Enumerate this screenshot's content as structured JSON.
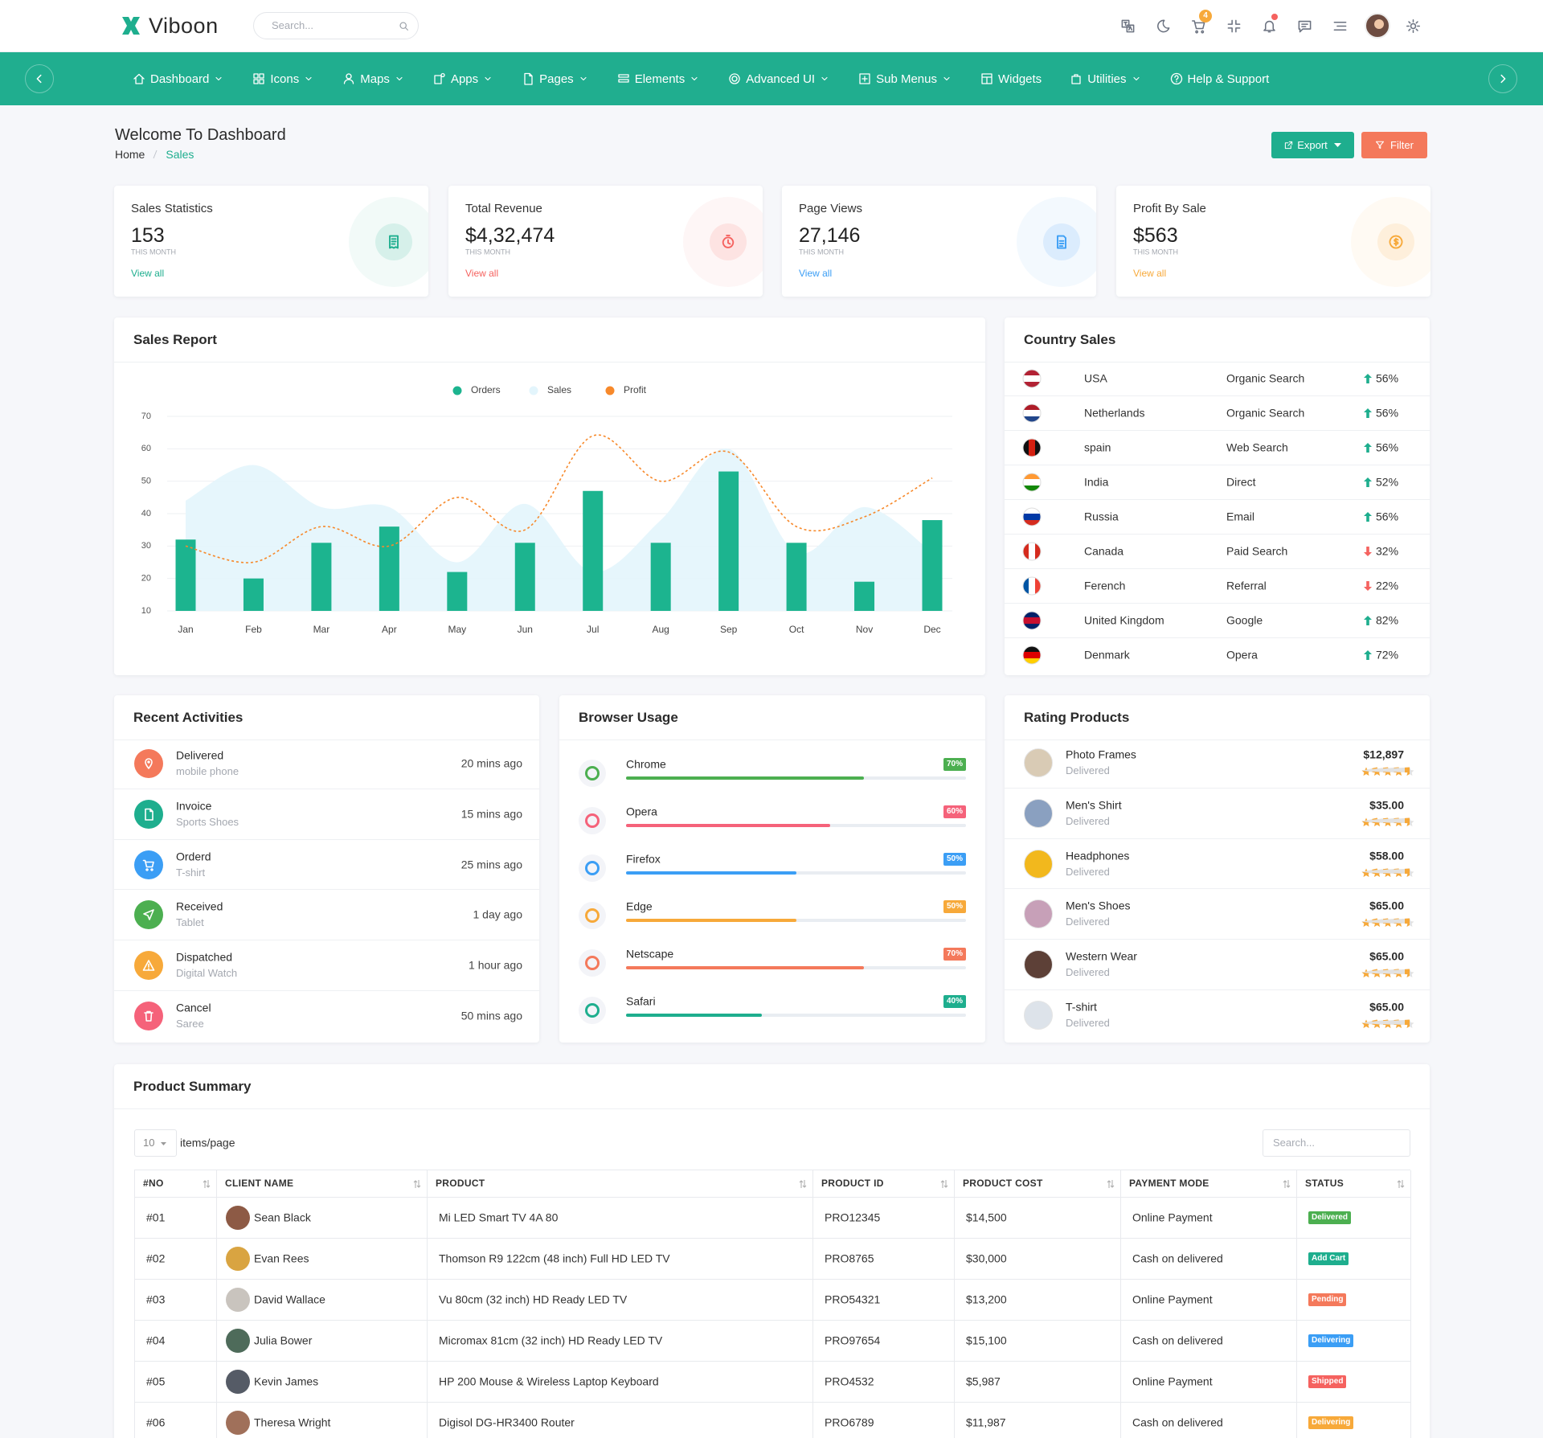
{
  "header": {
    "brand": "Viboon",
    "search_placeholder": "Search...",
    "cart_count": "4"
  },
  "nav": {
    "items": [
      {
        "label": "Dashboard",
        "dropdown": true
      },
      {
        "label": "Icons",
        "dropdown": true
      },
      {
        "label": "Maps",
        "dropdown": true
      },
      {
        "label": "Apps",
        "dropdown": true
      },
      {
        "label": "Pages",
        "dropdown": true
      },
      {
        "label": "Elements",
        "dropdown": true
      },
      {
        "label": "Advanced UI",
        "dropdown": true
      },
      {
        "label": "Sub Menus",
        "dropdown": true
      },
      {
        "label": "Widgets",
        "dropdown": false
      },
      {
        "label": "Utilities",
        "dropdown": true
      },
      {
        "label": "Help & Support",
        "dropdown": false
      }
    ]
  },
  "page_header": {
    "title": "Welcome To Dashboard",
    "breadcrumb": [
      "Home",
      "Sales"
    ],
    "export": "Export",
    "filter": "Filter"
  },
  "stats": [
    {
      "title": "Sales Statistics",
      "value": "153",
      "period": "THIS MONTH",
      "link": "View all",
      "color": "#1eae8e"
    },
    {
      "title": "Total Revenue",
      "value": "$4,32,474",
      "period": "THIS MONTH",
      "link": "View all",
      "color": "#f5625f"
    },
    {
      "title": "Page Views",
      "value": "27,146",
      "period": "THIS MONTH",
      "link": "View all",
      "color": "#3b9ef5"
    },
    {
      "title": "Profit By Sale",
      "value": "$563",
      "period": "THIS MONTH",
      "link": "View all",
      "color": "#f7a93a"
    }
  ],
  "chart_data": {
    "type": "combo",
    "title": "Sales Report",
    "categories": [
      "Jan",
      "Feb",
      "Mar",
      "Apr",
      "May",
      "Jun",
      "Jul",
      "Aug",
      "Sep",
      "Oct",
      "Nov",
      "Dec"
    ],
    "series": [
      {
        "name": "Orders",
        "type": "bar",
        "color": "#1cb48f",
        "values": [
          32,
          20,
          31,
          36,
          22,
          31,
          47,
          31,
          53,
          31,
          19,
          38
        ]
      },
      {
        "name": "Sales",
        "type": "area",
        "color": "#e3f5fc",
        "values": [
          44,
          55,
          42,
          42,
          25,
          43,
          22,
          38,
          60,
          28,
          42,
          28
        ]
      },
      {
        "name": "Profit",
        "type": "line",
        "color": "#f7892b",
        "dashed": true,
        "values": [
          30,
          25,
          36,
          30,
          45,
          35,
          64,
          50,
          59,
          36,
          39,
          51
        ]
      }
    ],
    "ylim": [
      10,
      70
    ],
    "yticks": [
      10,
      20,
      30,
      40,
      50,
      60,
      70
    ],
    "grid": true,
    "legend": "top"
  },
  "country_sales": {
    "title": "Country Sales",
    "rows": [
      {
        "country": "USA",
        "source": "Organic Search",
        "share": "56%",
        "trend": "up"
      },
      {
        "country": "Netherlands",
        "source": "Organic Search",
        "share": "56%",
        "trend": "up"
      },
      {
        "country": "spain",
        "source": "Web Search",
        "share": "56%",
        "trend": "up"
      },
      {
        "country": "India",
        "source": "Direct",
        "share": "52%",
        "trend": "up"
      },
      {
        "country": "Russia",
        "source": "Email",
        "share": "56%",
        "trend": "up"
      },
      {
        "country": "Canada",
        "source": "Paid Search",
        "share": "32%",
        "trend": "down"
      },
      {
        "country": "Ferench",
        "source": "Referral",
        "share": "22%",
        "trend": "down"
      },
      {
        "country": "United Kingdom",
        "source": "Google",
        "share": "82%",
        "trend": "up"
      },
      {
        "country": "Denmark",
        "source": "Opera",
        "share": "72%",
        "trend": "up"
      }
    ]
  },
  "recent_activities": {
    "title": "Recent Activities",
    "items": [
      {
        "title": "Delivered",
        "subtitle": "mobile phone",
        "time": "20 mins ago",
        "color": "#f4795b"
      },
      {
        "title": "Invoice",
        "subtitle": "Sports Shoes",
        "time": "15 mins ago",
        "color": "#1eae8e"
      },
      {
        "title": "Orderd",
        "subtitle": "T-shirt",
        "time": "25 mins ago",
        "color": "#3b9ef5"
      },
      {
        "title": "Received",
        "subtitle": "Tablet",
        "time": "1 day ago",
        "color": "#4caf50"
      },
      {
        "title": "Dispatched",
        "subtitle": "Digital Watch",
        "time": "1 hour ago",
        "color": "#f7a93a"
      },
      {
        "title": "Cancel",
        "subtitle": "Saree",
        "time": "50 mins ago",
        "color": "#f5627a"
      }
    ]
  },
  "browser_usage": {
    "title": "Browser Usage",
    "items": [
      {
        "name": "Chrome",
        "percent": 70,
        "label": "70%",
        "color": "#4caf50"
      },
      {
        "name": "Opera",
        "percent": 60,
        "label": "60%",
        "color": "#f5627a"
      },
      {
        "name": "Firefox",
        "percent": 50,
        "label": "50%",
        "color": "#3b9ef5"
      },
      {
        "name": "Edge",
        "percent": 50,
        "label": "50%",
        "color": "#f7a93a"
      },
      {
        "name": "Netscape",
        "percent": 70,
        "label": "70%",
        "color": "#f4795b"
      },
      {
        "name": "Safari",
        "percent": 40,
        "label": "40%",
        "color": "#1eae8e"
      }
    ]
  },
  "rating_products": {
    "title": "Rating Products",
    "items": [
      {
        "name": "Photo Frames",
        "status": "Delivered",
        "price": "$12,897",
        "rating": 4.5
      },
      {
        "name": "Men's Shirt",
        "status": "Delivered",
        "price": "$35.00",
        "rating": 4.5
      },
      {
        "name": "Headphones",
        "status": "Delivered",
        "price": "$58.00",
        "rating": 4.5
      },
      {
        "name": "Men's Shoes",
        "status": "Delivered",
        "price": "$65.00",
        "rating": 4.5
      },
      {
        "name": "Western Wear",
        "status": "Delivered",
        "price": "$65.00",
        "rating": 4.5
      },
      {
        "name": "T-shirt",
        "status": "Delivered",
        "price": "$65.00",
        "rating": 4.5
      }
    ]
  },
  "product_summary": {
    "title": "Product Summary",
    "page_size": "10",
    "page_size_label": "items/page",
    "search_placeholder": "Search...",
    "columns": [
      "#NO",
      "CLIENT NAME",
      "PRODUCT",
      "PRODUCT ID",
      "PRODUCT COST",
      "PAYMENT MODE",
      "STATUS"
    ],
    "rows": [
      {
        "no": "#01",
        "client": "Sean Black",
        "product": "Mi LED Smart TV 4A 80",
        "product_id": "PRO12345",
        "cost": "$14,500",
        "payment": "Online Payment",
        "status": "Delivered",
        "status_color": "#4caf50"
      },
      {
        "no": "#02",
        "client": "Evan Rees",
        "product": "Thomson R9 122cm (48 inch) Full HD LED TV",
        "product_id": "PRO8765",
        "cost": "$30,000",
        "payment": "Cash on delivered",
        "status": "Add Cart",
        "status_color": "#1eae8e"
      },
      {
        "no": "#03",
        "client": "David Wallace",
        "product": "Vu 80cm (32 inch) HD Ready LED TV",
        "product_id": "PRO54321",
        "cost": "$13,200",
        "payment": "Online Payment",
        "status": "Pending",
        "status_color": "#f4795b"
      },
      {
        "no": "#04",
        "client": "Julia Bower",
        "product": "Micromax 81cm (32 inch) HD Ready LED TV",
        "product_id": "PRO97654",
        "cost": "$15,100",
        "payment": "Cash on delivered",
        "status": "Delivering",
        "status_color": "#3b9ef5"
      },
      {
        "no": "#05",
        "client": "Kevin James",
        "product": "HP 200 Mouse & Wireless Laptop Keyboard",
        "product_id": "PRO4532",
        "cost": "$5,987",
        "payment": "Online Payment",
        "status": "Shipped",
        "status_color": "#f5625f"
      },
      {
        "no": "#06",
        "client": "Theresa Wright",
        "product": "Digisol DG-HR3400 Router",
        "product_id": "PRO6789",
        "cost": "$11,987",
        "payment": "Cash on delivered",
        "status": "Delivering",
        "status_color": "#f7a93a"
      }
    ]
  }
}
